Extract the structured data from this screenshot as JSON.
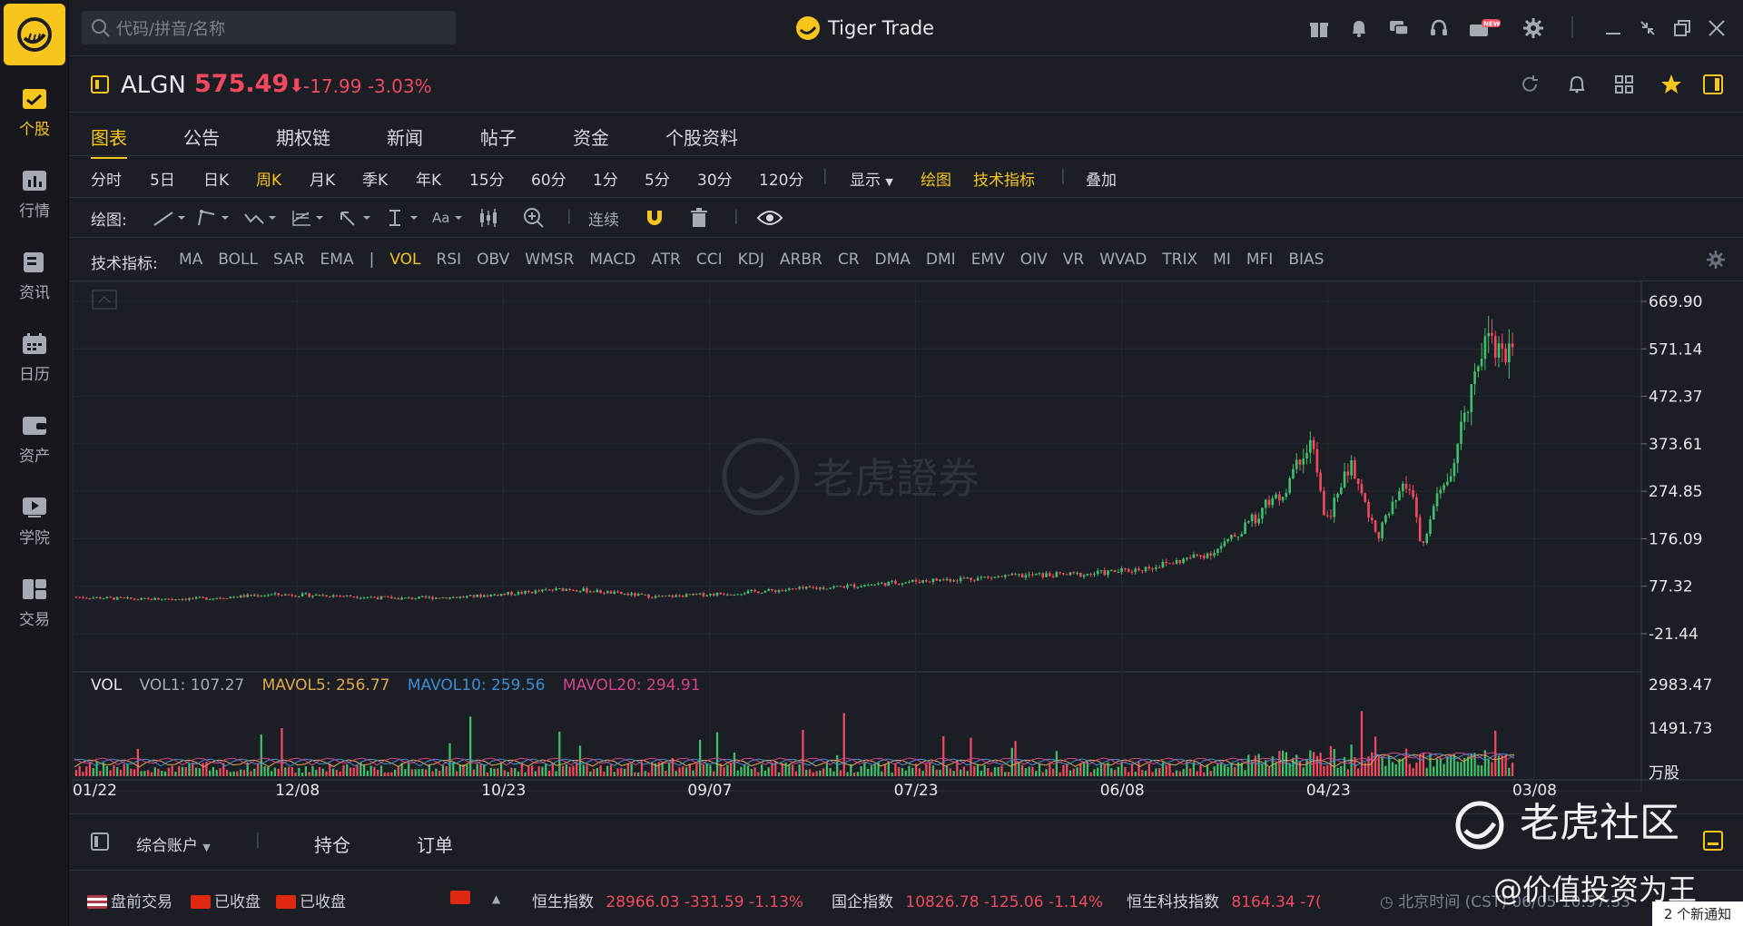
{
  "app": {
    "title": "Tiger Trade"
  },
  "search": {
    "placeholder": "代码/拼音/名称"
  },
  "sidebar": {
    "items": [
      {
        "label": "个股",
        "icon": "stock-chart-icon"
      },
      {
        "label": "行情",
        "icon": "market-icon"
      },
      {
        "label": "资讯",
        "icon": "news-icon"
      },
      {
        "label": "日历",
        "icon": "calendar-icon"
      },
      {
        "label": "资产",
        "icon": "wallet-icon"
      },
      {
        "label": "学院",
        "icon": "play-icon"
      },
      {
        "label": "交易",
        "icon": "trade-icon"
      }
    ]
  },
  "topbar": {
    "new_badge": "NEW"
  },
  "stock": {
    "symbol": "ALGN",
    "price": "575.49",
    "arrow": "⬇",
    "change": "-17.99",
    "change_pct": "-3.03%"
  },
  "tabs": [
    "图表",
    "公告",
    "期权链",
    "新闻",
    "帖子",
    "资金",
    "个股资料"
  ],
  "periods": [
    "分时",
    "5日",
    "日K",
    "周K",
    "月K",
    "季K",
    "年K",
    "15分",
    "60分",
    "1分",
    "5分",
    "30分",
    "120分"
  ],
  "period_extras": {
    "display": "显示",
    "draw": "绘图",
    "indicators": "技术指标",
    "overlay": "叠加"
  },
  "draw_row": {
    "label": "绘图:",
    "continuous": "连续",
    "text_tool": "Aa"
  },
  "indicator_row": {
    "label": "技术指标:",
    "items_before": [
      "MA",
      "BOLL",
      "SAR",
      "EMA"
    ],
    "items_after": [
      "VOL",
      "RSI",
      "OBV",
      "WMSR",
      "MACD",
      "ATR",
      "CCI",
      "KDJ",
      "ARBR",
      "CR",
      "DMA",
      "DMI",
      "EMV",
      "OIV",
      "VR",
      "WVAD",
      "TRIX",
      "MI",
      "MFI",
      "BIAS"
    ]
  },
  "chart_data": {
    "type": "candlestick",
    "title": "",
    "price_axis_ticks": [
      "669.90",
      "571.14",
      "472.37",
      "373.61",
      "274.85",
      "176.09",
      "77.32",
      "-21.44"
    ],
    "x_tick_labels": [
      "01/22",
      "12/08",
      "10/23",
      "09/07",
      "07/23",
      "06/08",
      "04/23",
      "03/08"
    ],
    "price_range": [
      -21.44,
      669.9
    ],
    "series_shape": [
      [
        0,
        55
      ],
      [
        0.05,
        50
      ],
      [
        0.1,
        52
      ],
      [
        0.15,
        60
      ],
      [
        0.2,
        58
      ],
      [
        0.25,
        52
      ],
      [
        0.3,
        55
      ],
      [
        0.35,
        65
      ],
      [
        0.38,
        72
      ],
      [
        0.42,
        62
      ],
      [
        0.45,
        55
      ],
      [
        0.5,
        62
      ],
      [
        0.55,
        70
      ],
      [
        0.6,
        78
      ],
      [
        0.65,
        88
      ],
      [
        0.7,
        95
      ],
      [
        0.74,
        100
      ],
      [
        0.78,
        102
      ],
      [
        0.82,
        112
      ],
      [
        0.85,
        128
      ],
      [
        0.88,
        150
      ],
      [
        0.9,
        190
      ],
      [
        0.92,
        245
      ],
      [
        0.935,
        275
      ],
      [
        0.945,
        340
      ],
      [
        0.955,
        385
      ],
      [
        0.965,
        205
      ],
      [
        0.975,
        270
      ],
      [
        0.985,
        330
      ],
      [
        0.995,
        260
      ],
      [
        1.005,
        180
      ],
      [
        1.015,
        230
      ],
      [
        1.03,
        295
      ],
      [
        1.04,
        150
      ],
      [
        1.05,
        250
      ],
      [
        1.065,
        330
      ],
      [
        1.075,
        460
      ],
      [
        1.09,
        620
      ],
      [
        1.1,
        560
      ],
      [
        1.11,
        590
      ]
    ],
    "watermark": "老虎證券",
    "volume": {
      "label": "VOL",
      "vol1": "VOL1: 107.27",
      "mavol5": "MAVOL5: 256.77",
      "mavol10": "MAVOL10: 259.56",
      "mavol20": "MAVOL20: 294.91",
      "axis_ticks": [
        "2983.47",
        "1491.73"
      ],
      "unit": "万股",
      "colors": {
        "vol1": "#a6aab3",
        "mavol5": "#e0a848",
        "mavol10": "#3b8fd6",
        "mavol20": "#d6428a"
      }
    },
    "colors": {
      "up": "#3fbf6a",
      "down": "#f2485d"
    }
  },
  "account": {
    "name": "综合账户",
    "positions": "持仓",
    "orders": "订单"
  },
  "status": {
    "us": "盘前交易",
    "hk": "已收盘",
    "cn": "已收盘",
    "indices": [
      {
        "name": "恒生指数",
        "value": "28966.03 -331.59 -1.13%"
      },
      {
        "name": "国企指数",
        "value": "10826.78 -125.06 -1.14%"
      },
      {
        "name": "恒生科技指数",
        "value": "8164.34 -7("
      }
    ],
    "clock": "北京时间 (CST) 06/05 10:57:33"
  },
  "overlay_watermark": {
    "community": "老虎社区",
    "author": "@价值投资为王"
  },
  "notice": "2 个新通知"
}
